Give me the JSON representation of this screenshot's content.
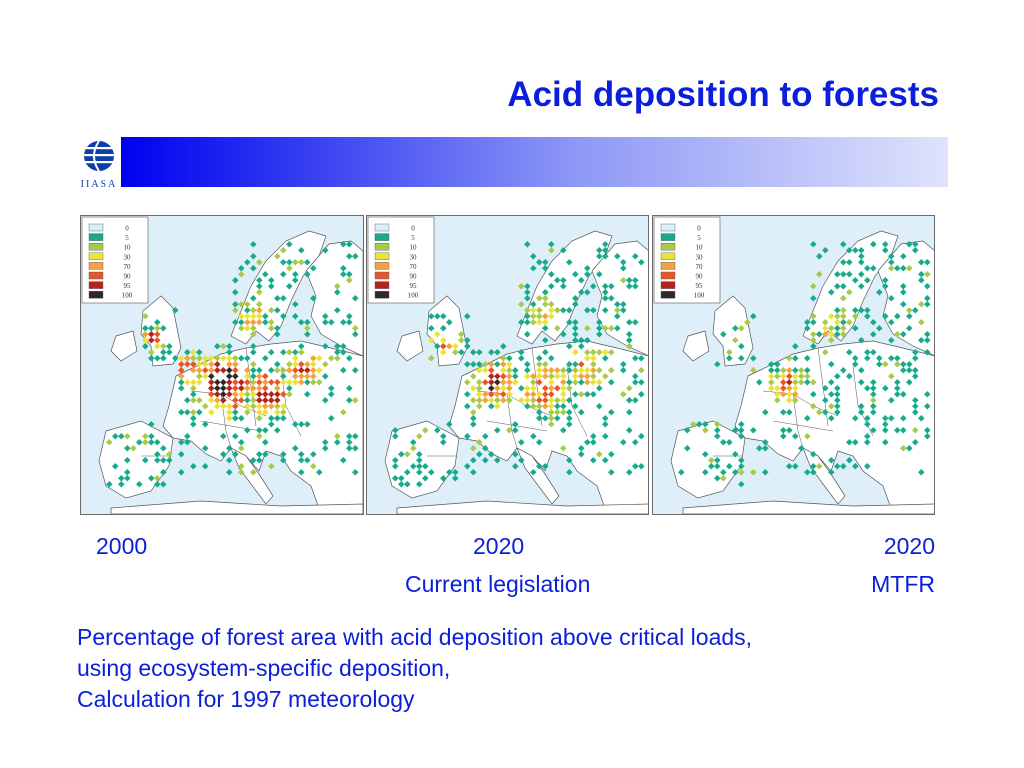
{
  "title": "Acid deposition to forests",
  "logo": {
    "text": "IIASA"
  },
  "brand_colors": {
    "text": "#0a1edb",
    "sea": "#dfeffa",
    "land": "#ffffff",
    "border": "#555555"
  },
  "legend": {
    "items": [
      {
        "label": "0",
        "color": "#d8eef9"
      },
      {
        "label": "5",
        "color": "#1aa98c"
      },
      {
        "label": "10",
        "color": "#a9c94a"
      },
      {
        "label": "30",
        "color": "#ebe33a"
      },
      {
        "label": "70",
        "color": "#f3a23f"
      },
      {
        "label": "90",
        "color": "#e8552b"
      },
      {
        "label": "95",
        "color": "#b3251c"
      },
      {
        "label": "100",
        "color": "#2e2a2a"
      }
    ]
  },
  "maps": [
    {
      "year": "2000",
      "subtitle": ""
    },
    {
      "year": "2020",
      "subtitle": "Current legislation"
    },
    {
      "year": "2020",
      "subtitle": "MTFR"
    }
  ],
  "description": [
    "Percentage of forest area with acid deposition above critical loads,",
    "using ecosystem-specific deposition,",
    "Calculation for 1997 meteorology"
  ]
}
